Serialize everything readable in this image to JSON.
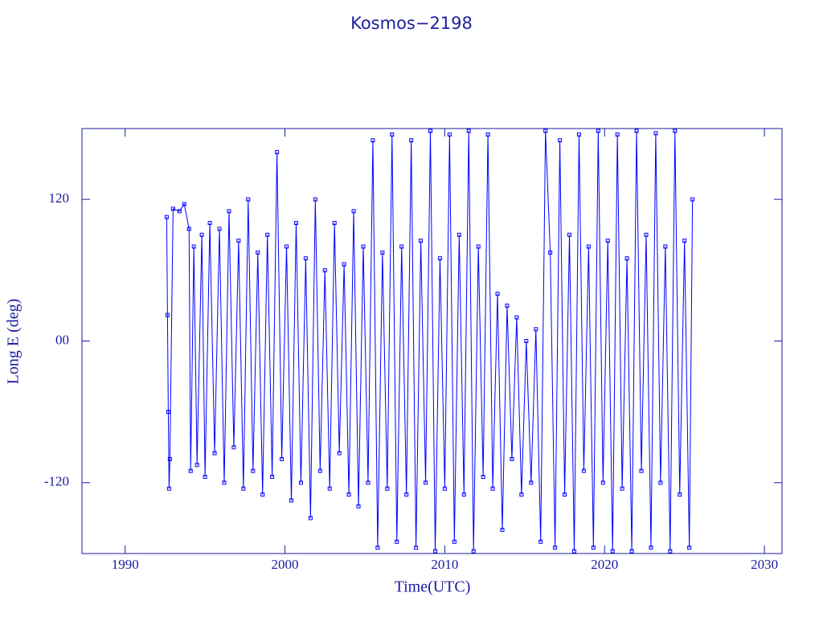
{
  "chart_data": {
    "type": "line",
    "title": "Kosmos−2198",
    "xlabel": "Time(UTC)",
    "ylabel": "Long E (deg)",
    "xlim": [
      1987.3,
      2031.1
    ],
    "ylim": [
      -180,
      180
    ],
    "xticks": [
      1990,
      2000,
      2010,
      2020,
      2030
    ],
    "yticks": [
      -120,
      {
        "value": 0,
        "label": "00"
      },
      120
    ],
    "series": [
      {
        "color": "#0000ff",
        "x": [
          1992.6,
          1992.65,
          1992.7,
          1992.75,
          1992.8,
          1993.0,
          1993.4,
          1993.7,
          1994.0,
          1994.1,
          1994.3,
          1994.5,
          1994.8,
          1995.0,
          1995.3,
          1995.6,
          1995.9,
          1996.2,
          1996.5,
          1996.8,
          1997.1,
          1997.4,
          1997.7,
          1998.0,
          1998.3,
          1998.6,
          1998.9,
          1999.2,
          1999.5,
          1999.8,
          2000.1,
          2000.4,
          2000.7,
          2001.0,
          2001.3,
          2001.6,
          2001.9,
          2002.2,
          2002.5,
          2002.8,
          2003.1,
          2003.4,
          2003.7,
          2004.0,
          2004.3,
          2004.6,
          2004.9,
          2005.2,
          2005.5,
          2005.8,
          2006.1,
          2006.4,
          2006.7,
          2007.0,
          2007.3,
          2007.6,
          2007.9,
          2008.2,
          2008.5,
          2008.8,
          2009.1,
          2009.4,
          2009.7,
          2010.0,
          2010.3,
          2010.6,
          2010.9,
          2011.2,
          2011.5,
          2011.8,
          2012.1,
          2012.4,
          2012.7,
          2013.0,
          2013.3,
          2013.6,
          2013.9,
          2014.2,
          2014.5,
          2014.8,
          2015.1,
          2015.4,
          2015.7,
          2016.0,
          2016.3,
          2016.6,
          2016.9,
          2017.2,
          2017.5,
          2017.8,
          2018.1,
          2018.4,
          2018.7,
          2019.0,
          2019.3,
          2019.6,
          2019.9,
          2020.2,
          2020.5,
          2020.8,
          2021.1,
          2021.4,
          2021.7,
          2022.0,
          2022.3,
          2022.6,
          2022.9,
          2023.2,
          2023.5,
          2023.8,
          2024.1,
          2024.4,
          2024.7,
          2025.0,
          2025.3,
          2025.5
        ],
        "values": [
          105,
          22,
          -60,
          -125,
          -100,
          112,
          110,
          116,
          95,
          -110,
          80,
          -105,
          90,
          -115,
          100,
          -95,
          95,
          -120,
          110,
          -90,
          85,
          -125,
          120,
          -110,
          75,
          -130,
          90,
          -115,
          160,
          -100,
          80,
          -135,
          100,
          -120,
          70,
          -150,
          120,
          -110,
          60,
          -125,
          100,
          -95,
          65,
          -130,
          110,
          -140,
          80,
          -120,
          170,
          -175,
          75,
          -125,
          175,
          -170,
          80,
          -130,
          170,
          -175,
          85,
          -120,
          178,
          -178,
          70,
          -125,
          175,
          -170,
          90,
          -130,
          178,
          -178,
          80,
          -115,
          175,
          -125,
          40,
          -160,
          30,
          -100,
          20,
          -130,
          0,
          -120,
          10,
          -170,
          178,
          75,
          -175,
          170,
          -130,
          90,
          -178,
          175,
          -110,
          80,
          -175,
          178,
          -120,
          85,
          -178,
          175,
          -125,
          70,
          -178,
          178,
          -110,
          90,
          -175,
          176,
          -120,
          80,
          -178,
          178,
          -130,
          85,
          -175,
          120
        ]
      }
    ]
  }
}
